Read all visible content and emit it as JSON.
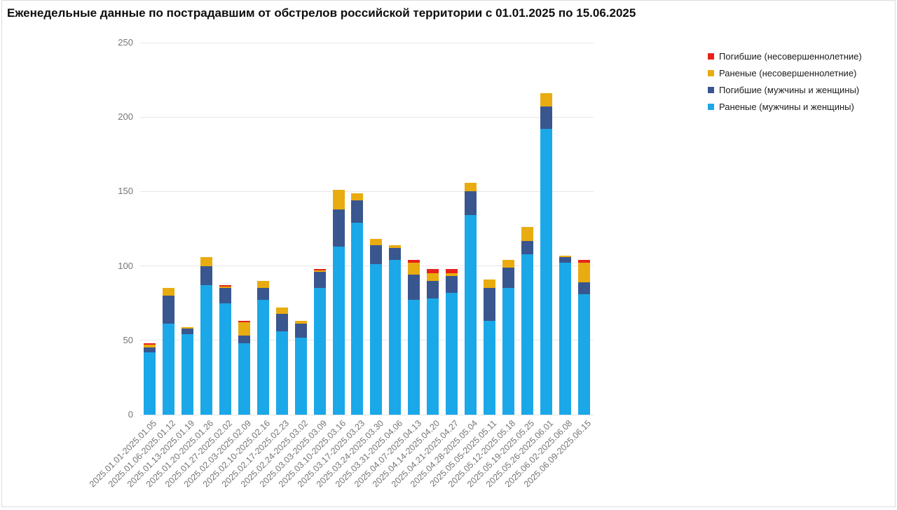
{
  "title": "Еженедельные данные по пострадавшим от обстрелов российской территории с 01.01.2025 по 15.06.2025",
  "colors": {
    "background": "#ffffff",
    "frame_border": "#dcdcdc",
    "grid": "#e7e7e7",
    "axis_text": "#757575",
    "title_text": "#0d0d0d",
    "legend_text": "#1c1c1c"
  },
  "legend": {
    "position": "top-right",
    "items": [
      {
        "label": "Погибшие (несовершеннолетние)",
        "color": "#e8221a"
      },
      {
        "label": "Раненые (несовершеннолетние)",
        "color": "#e9ac10"
      },
      {
        "label": "Погибшие (мужчины и женщины)",
        "color": "#39568f"
      },
      {
        "label": "Раненые (мужчины и женщины)",
        "color": "#1ba8e8"
      }
    ]
  },
  "y_axis": {
    "ticks": [
      0,
      50,
      100,
      150,
      200,
      250
    ]
  },
  "chart_data": {
    "type": "bar",
    "stacked": true,
    "title": "Еженедельные данные по пострадавшим от обстрелов российской территории с 01.01.2025 по 15.06.2025",
    "xlabel": "",
    "ylabel": "",
    "ylim": [
      0,
      250
    ],
    "grid": true,
    "legend_position": "top-right",
    "categories": [
      "2025.01.01-2025.01.05",
      "2025.01.06-2025.01.12",
      "2025.01.13-2025.01.19",
      "2025.01.20-2025.01.26",
      "2025.01.27-2025.02.02",
      "2025.02.03-2025.02.09",
      "2025.02.10-2025.02.16",
      "2025.02.17-2025.02.23",
      "2025.02.24-2025.03.02",
      "2025.03.03-2025.03.09",
      "2025.03.10-2025.03.16",
      "2025.03.17-2025.03.23",
      "2025.03.24-2025.03.30",
      "2025.03.31-2025.04.06",
      "2025.04.07-2025.04.13",
      "2025.04.14-2025.04.20",
      "2025.04.21-2025.04.27",
      "2025.04.28-2025.05.04",
      "2025.05.05-2025.05.11",
      "2025.05.12-2025.05.18",
      "2025.05.19-2025.05.25",
      "2025.05.26-2025.06.01",
      "2025.06.02-2025.06.08",
      "2025.06.09-2025.06.15"
    ],
    "series": [
      {
        "name": "Раненые (мужчины и женщины)",
        "color": "#1ba8e8",
        "values": [
          42,
          61,
          54,
          87,
          75,
          48,
          77,
          56,
          52,
          85,
          113,
          129,
          101,
          104,
          77,
          78,
          82,
          134,
          63,
          85,
          108,
          192,
          102,
          81
        ]
      },
      {
        "name": "Погибшие (мужчины и женщины)",
        "color": "#39568f",
        "values": [
          3,
          19,
          4,
          13,
          10,
          5,
          8,
          12,
          9,
          11,
          25,
          15,
          13,
          8,
          17,
          12,
          11,
          16,
          22,
          14,
          9,
          15,
          4,
          8
        ]
      },
      {
        "name": "Раненые (несовершеннолетние)",
        "color": "#e9ac10",
        "values": [
          2,
          5,
          1,
          6,
          1,
          9,
          5,
          4,
          2,
          1,
          13,
          5,
          4,
          2,
          8,
          5,
          2,
          6,
          6,
          5,
          9,
          9,
          1,
          13
        ]
      },
      {
        "name": "Погибшие (несовершеннолетние)",
        "color": "#e8221a",
        "values": [
          1,
          0,
          0,
          0,
          1,
          1,
          0,
          0,
          0,
          1,
          0,
          0,
          0,
          0,
          2,
          3,
          3,
          0,
          0,
          0,
          0,
          0,
          0,
          2
        ]
      }
    ],
    "totals": [
      48,
      85,
      59,
      106,
      87,
      63,
      90,
      72,
      63,
      98,
      151,
      149,
      118,
      114,
      104,
      98,
      98,
      156,
      91,
      104,
      126,
      216,
      107,
      104
    ]
  }
}
